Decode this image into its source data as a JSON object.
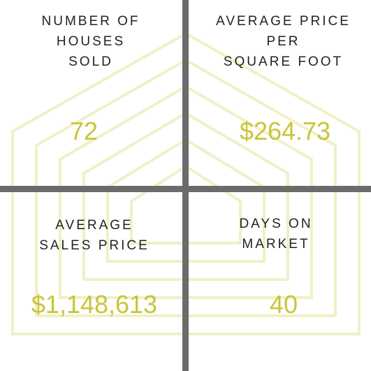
{
  "stats": [
    {
      "label": [
        "NUMBER OF",
        "HOUSES",
        "SOLD"
      ],
      "value": "72"
    },
    {
      "label": [
        "AVERAGE PRICE",
        "PER",
        "SQUARE FOOT"
      ],
      "value": "$264.73"
    },
    {
      "label": [
        "AVERAGE",
        "SALES PRICE"
      ],
      "value": "$1,148,613"
    },
    {
      "label": [
        "DAYS ON",
        "MARKET"
      ],
      "value": "40"
    }
  ],
  "colors": {
    "divider": "#6b6b6b",
    "value_text": "#c9c43a",
    "label_text": "#222222",
    "background_art": "#f1f0c6"
  },
  "background_art_icon": "nested-house-outline-icon"
}
